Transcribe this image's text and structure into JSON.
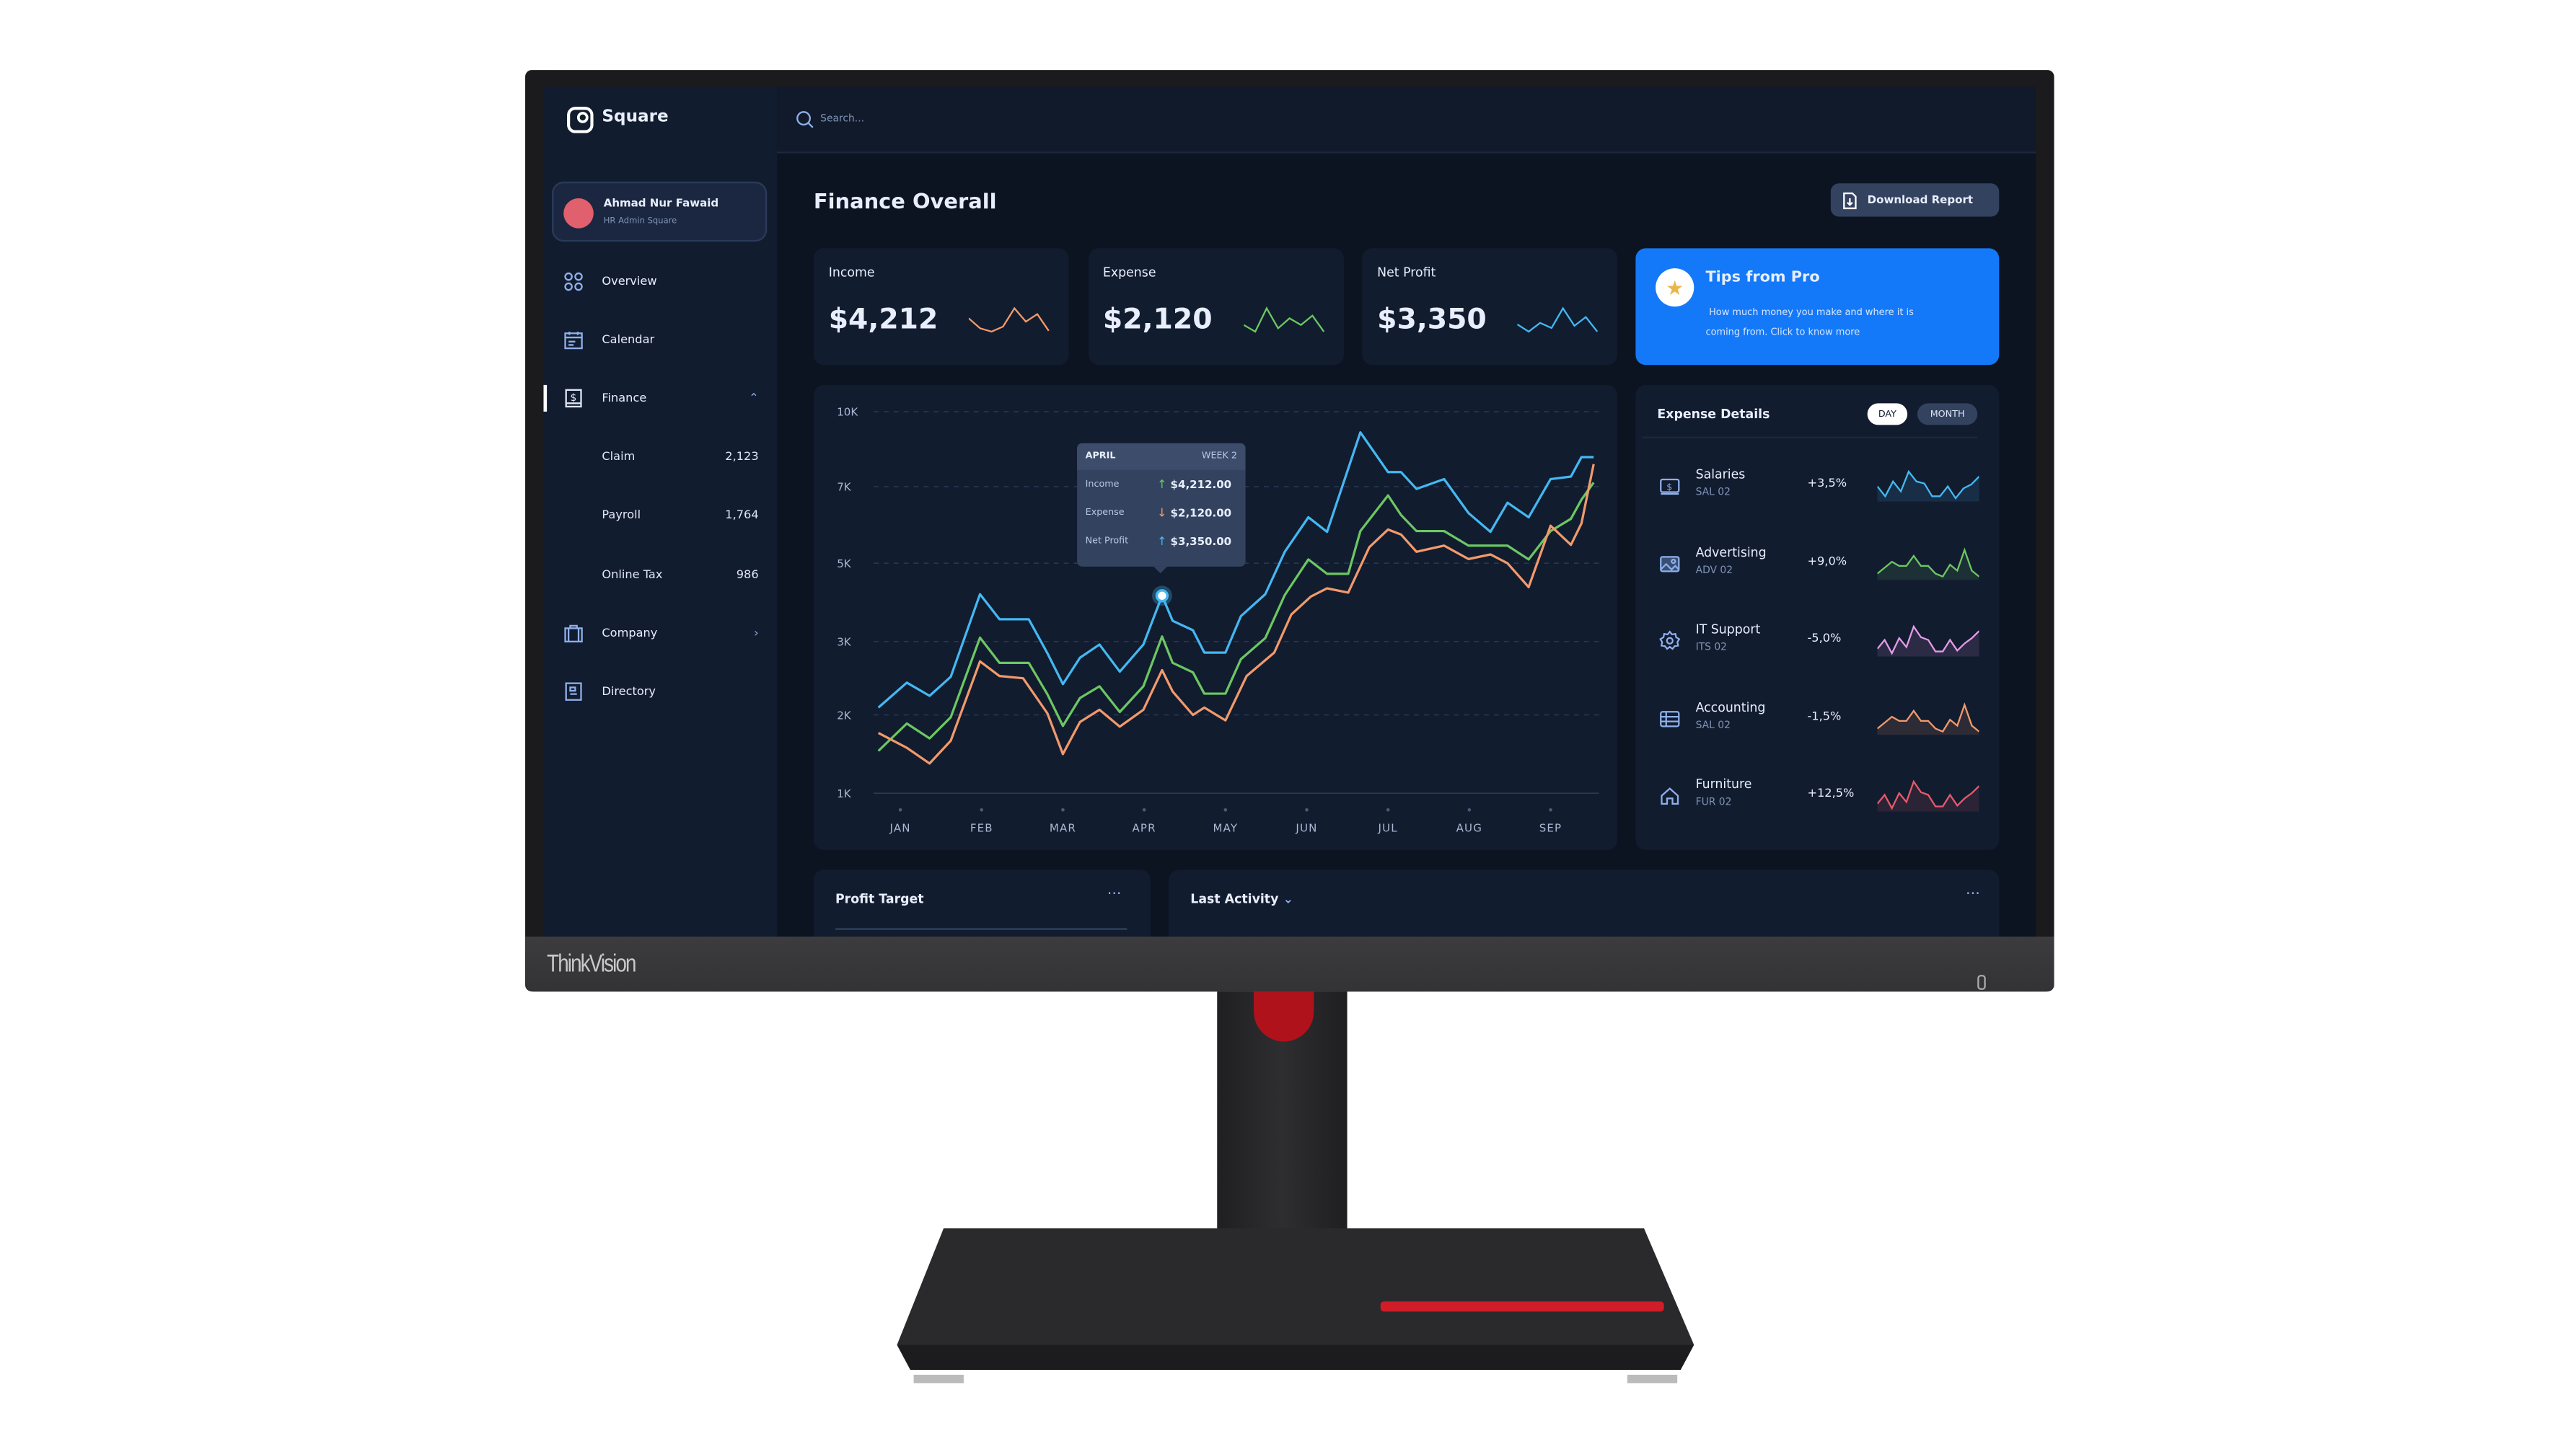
{
  "monitor": {
    "brand": "ThinkVision"
  },
  "app": {
    "name": "Square"
  },
  "search": {
    "placeholder": "Search..."
  },
  "profile": {
    "name": "Ahmad Nur Fawaid",
    "role": "HR Admin Square",
    "avatar_color": "#e0606e"
  },
  "sidebar": {
    "items": [
      {
        "label": "Overview",
        "icon": "grid-icon"
      },
      {
        "label": "Calendar",
        "icon": "calendar-icon"
      },
      {
        "label": "Finance",
        "icon": "finance-book-icon",
        "expanded": true,
        "active": true
      },
      {
        "label": "Company",
        "icon": "briefcase-icon"
      },
      {
        "label": "Directory",
        "icon": "directory-icon"
      }
    ],
    "finance_sub": [
      {
        "label": "Claim",
        "count": "2,123"
      },
      {
        "label": "Payroll",
        "count": "1,764"
      },
      {
        "label": "Online Tax",
        "count": "986"
      }
    ]
  },
  "header": {
    "title": "Finance Overall",
    "download_label": "Download Report"
  },
  "stats": [
    {
      "label": "Income",
      "value": "$4,212",
      "color": "#f29a6b",
      "spark": [
        3,
        1.8,
        1.4,
        2,
        4.2,
        2.6,
        3.5,
        1.5
      ]
    },
    {
      "label": "Expense",
      "value": "$2,120",
      "color": "#6cc763",
      "spark": [
        2,
        1,
        4.5,
        1.5,
        3,
        2,
        3.4,
        1
      ]
    },
    {
      "label": "Net Profit",
      "value": "$3,350",
      "color": "#44b8f2",
      "spark": [
        2,
        1,
        2.2,
        1.5,
        4.2,
        1.8,
        3,
        1
      ]
    }
  ],
  "tips": {
    "title": "Tips from Pro",
    "text_line1": "How much money you make and where it is",
    "text_line2": "coming from. Click to know more",
    "accent": "#1479f8"
  },
  "chart_data": {
    "type": "line",
    "categories": [
      "JAN",
      "FEB",
      "MAR",
      "APR",
      "MAY",
      "JUN",
      "JUL",
      "AUG",
      "SEP"
    ],
    "yticks": [
      "10K",
      "7K",
      "5K",
      "3K",
      "2K",
      "1K"
    ],
    "ytick_values": [
      10,
      7,
      5,
      3,
      2,
      1
    ],
    "grid": true,
    "series": [
      {
        "name": "Net Profit",
        "color": "#44b8f2",
        "points": [
          [
            0.73,
            2.1
          ],
          [
            1.08,
            2.44
          ],
          [
            1.36,
            2.26
          ],
          [
            1.62,
            2.52
          ],
          [
            1.98,
            4.21
          ],
          [
            2.22,
            3.57
          ],
          [
            2.58,
            3.57
          ],
          [
            2.81,
            2.84
          ],
          [
            3.0,
            2.42
          ],
          [
            3.21,
            2.78
          ],
          [
            3.45,
            2.96
          ],
          [
            3.7,
            2.59
          ],
          [
            3.99,
            2.96
          ],
          [
            4.22,
            4.17
          ],
          [
            4.35,
            3.53
          ],
          [
            4.6,
            3.29
          ],
          [
            4.74,
            2.85
          ],
          [
            5.0,
            2.85
          ],
          [
            5.19,
            3.65
          ],
          [
            5.49,
            4.21
          ],
          [
            5.73,
            5.3
          ],
          [
            6.02,
            6.2
          ],
          [
            6.25,
            5.82
          ],
          [
            6.66,
            9.17
          ],
          [
            7.0,
            7.58
          ],
          [
            7.16,
            7.58
          ],
          [
            7.35,
            6.94
          ],
          [
            7.69,
            7.3
          ],
          [
            7.99,
            6.31
          ],
          [
            8.26,
            5.82
          ],
          [
            8.47,
            6.58
          ],
          [
            8.73,
            6.2
          ],
          [
            9.0,
            7.3
          ],
          [
            9.25,
            7.4
          ],
          [
            9.38,
            8.18
          ],
          [
            9.53,
            8.18
          ]
        ]
      },
      {
        "name": "Income",
        "color": "#6cc763",
        "points": [
          [
            0.73,
            1.54
          ],
          [
            1.08,
            1.89
          ],
          [
            1.36,
            1.7
          ],
          [
            1.62,
            1.97
          ],
          [
            1.98,
            3.1
          ],
          [
            2.22,
            2.71
          ],
          [
            2.58,
            2.71
          ],
          [
            2.81,
            2.28
          ],
          [
            3.0,
            1.86
          ],
          [
            3.21,
            2.23
          ],
          [
            3.45,
            2.39
          ],
          [
            3.7,
            2.04
          ],
          [
            3.99,
            2.39
          ],
          [
            4.22,
            3.13
          ],
          [
            4.35,
            2.71
          ],
          [
            4.6,
            2.58
          ],
          [
            4.74,
            2.29
          ],
          [
            5.0,
            2.29
          ],
          [
            5.19,
            2.76
          ],
          [
            5.49,
            3.09
          ],
          [
            5.73,
            4.19
          ],
          [
            6.02,
            5.1
          ],
          [
            6.25,
            4.73
          ],
          [
            6.51,
            4.73
          ],
          [
            6.66,
            5.84
          ],
          [
            7.0,
            6.77
          ],
          [
            7.16,
            6.26
          ],
          [
            7.35,
            5.84
          ],
          [
            7.69,
            5.84
          ],
          [
            7.99,
            5.46
          ],
          [
            8.47,
            5.46
          ],
          [
            8.73,
            5.1
          ],
          [
            9.0,
            5.84
          ],
          [
            9.25,
            6.16
          ],
          [
            9.38,
            6.66
          ],
          [
            9.53,
            7.16
          ]
        ]
      },
      {
        "name": "Expense",
        "color": "#f29a6b",
        "points": [
          [
            0.73,
            1.77
          ],
          [
            1.08,
            1.58
          ],
          [
            1.36,
            1.38
          ],
          [
            1.62,
            1.67
          ],
          [
            1.98,
            2.73
          ],
          [
            2.22,
            2.53
          ],
          [
            2.51,
            2.5
          ],
          [
            2.81,
            2.02
          ],
          [
            3.0,
            1.5
          ],
          [
            3.21,
            1.91
          ],
          [
            3.45,
            2.07
          ],
          [
            3.7,
            1.85
          ],
          [
            3.99,
            2.07
          ],
          [
            4.22,
            2.61
          ],
          [
            4.35,
            2.32
          ],
          [
            4.6,
            2.0
          ],
          [
            4.74,
            2.1
          ],
          [
            5.0,
            1.93
          ],
          [
            5.26,
            2.53
          ],
          [
            5.6,
            2.85
          ],
          [
            5.81,
            3.69
          ],
          [
            6.05,
            4.15
          ],
          [
            6.25,
            4.36
          ],
          [
            6.51,
            4.25
          ],
          [
            6.77,
            5.42
          ],
          [
            7.0,
            5.88
          ],
          [
            7.16,
            5.75
          ],
          [
            7.35,
            5.3
          ],
          [
            7.69,
            5.46
          ],
          [
            7.99,
            5.11
          ],
          [
            8.26,
            5.23
          ],
          [
            8.47,
            5.0
          ],
          [
            8.73,
            4.39
          ],
          [
            9.0,
            5.98
          ],
          [
            9.25,
            5.48
          ],
          [
            9.38,
            6.04
          ],
          [
            9.53,
            7.9
          ]
        ]
      }
    ],
    "highlight": {
      "x": 4.22,
      "y": 4.17
    },
    "tooltip": {
      "month": "APRIL",
      "week": "WEEK 2",
      "rows": [
        {
          "label": "Income",
          "value": "$4,212.00",
          "arrow": "up",
          "color": "#6cc763"
        },
        {
          "label": "Expense",
          "value": "$2,120.00",
          "arrow": "down",
          "color": "#f29a6b"
        },
        {
          "label": "Net Profit",
          "value": "$3,350.00",
          "arrow": "up",
          "color": "#44b8f2"
        }
      ]
    }
  },
  "expense_details": {
    "title": "Expense Details",
    "toggle": [
      "DAY",
      "MONTH"
    ],
    "selected": "DAY",
    "items": [
      {
        "name": "Salaries",
        "code": "SAL 02",
        "change": "+3,5%",
        "icon": "money-icon",
        "color": "#44b8f2"
      },
      {
        "name": "Advertising",
        "code": "ADV 02",
        "change": "+9,0%",
        "icon": "image-icon",
        "color": "#6cc763"
      },
      {
        "name": "IT Support",
        "code": "ITS 02",
        "change": "-5,0%",
        "icon": "gear-icon",
        "color": "#e49ae8"
      },
      {
        "name": "Accounting",
        "code": "SAL 02",
        "change": "-1,5%",
        "icon": "table-icon",
        "color": "#f29a6b"
      },
      {
        "name": "Furniture",
        "code": "FUR 02",
        "change": "+12,5%",
        "icon": "home-icon",
        "color": "#e65a6a"
      }
    ],
    "sparks": [
      [
        3,
        2,
        3.5,
        2.5,
        4.5,
        3.5,
        3.3,
        2,
        2,
        3,
        1.8,
        2.8,
        3.2,
        4
      ],
      [
        2,
        3,
        4,
        3.3,
        3.3,
        5,
        3.3,
        3.3,
        2,
        1.5,
        3.5,
        2.5,
        6,
        2.5,
        1.5
      ],
      [
        2,
        3,
        1.5,
        3.2,
        2.2,
        4.5,
        3.3,
        3,
        1.7,
        1.7,
        3,
        1.8,
        2.6,
        3.2,
        4
      ],
      [
        2,
        3,
        4,
        3.3,
        3.3,
        5,
        3.3,
        3.3,
        2,
        1.5,
        3.5,
        2.5,
        6,
        2.5,
        1.5
      ],
      [
        2,
        3,
        1.5,
        3.2,
        2.2,
        4.5,
        3.3,
        3,
        1.7,
        1.7,
        3,
        1.8,
        2.6,
        3.2,
        4
      ]
    ]
  },
  "bottom": {
    "profit_target": "Profit Target",
    "last_activity": "Last Activity"
  }
}
